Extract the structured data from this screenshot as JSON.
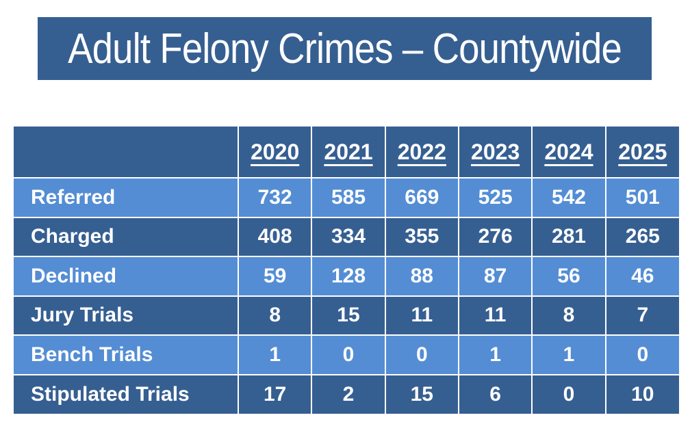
{
  "banner": {
    "title": "Adult Felony Crimes – Countywide"
  },
  "colors": {
    "background": "#ffffff",
    "dark_blue": "#365f91",
    "light_blue": "#548dd4",
    "text": "#ffffff",
    "divider": "#ffffff"
  },
  "chart_data": {
    "type": "table",
    "title": "Adult Felony Crimes – Countywide",
    "columns": [
      "2020",
      "2021",
      "2022",
      "2023",
      "2024",
      "2025"
    ],
    "rows": [
      {
        "label": "Referred",
        "values": [
          732,
          585,
          669,
          525,
          542,
          501
        ]
      },
      {
        "label": "Charged",
        "values": [
          408,
          334,
          355,
          276,
          281,
          265
        ]
      },
      {
        "label": "Declined",
        "values": [
          59,
          128,
          88,
          87,
          56,
          46
        ]
      },
      {
        "label": "Jury Trials",
        "values": [
          8,
          15,
          11,
          11,
          8,
          7
        ]
      },
      {
        "label": "Bench Trials",
        "values": [
          1,
          0,
          0,
          1,
          1,
          0
        ]
      },
      {
        "label": "Stipulated Trials",
        "values": [
          17,
          2,
          15,
          6,
          0,
          10
        ]
      }
    ]
  }
}
